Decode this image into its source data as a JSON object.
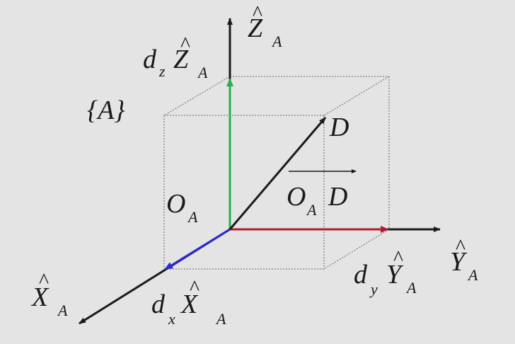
{
  "frame": {
    "label": "{A}"
  },
  "origin": {
    "label": "O",
    "subscript": "A"
  },
  "axes": {
    "z": {
      "hat": "^",
      "label": "Z",
      "subscript": "A"
    },
    "y": {
      "hat": "^",
      "label": "Y",
      "subscript": "A"
    },
    "x": {
      "hat": "^",
      "label": "X",
      "subscript": "A"
    }
  },
  "components": {
    "z": {
      "coef": "d",
      "coef_sub": "z",
      "hat": "^",
      "label": "Z",
      "subscript": "A",
      "color": "#22b14c"
    },
    "y": {
      "coef": "d",
      "coef_sub": "y",
      "hat": "^",
      "label": "Y",
      "subscript": "A",
      "color": "#b01c2e"
    },
    "x": {
      "coef": "d",
      "coef_sub": "x",
      "hat": "^",
      "label": "X",
      "subscript": "A",
      "color": "#2a2ad0"
    }
  },
  "point": {
    "label": "D"
  },
  "vector": {
    "from": "O",
    "from_sub": "A",
    "to": "D"
  },
  "colors": {
    "axis": "#1a1a1a",
    "box": "#666666",
    "background": "#e4e4e4"
  }
}
